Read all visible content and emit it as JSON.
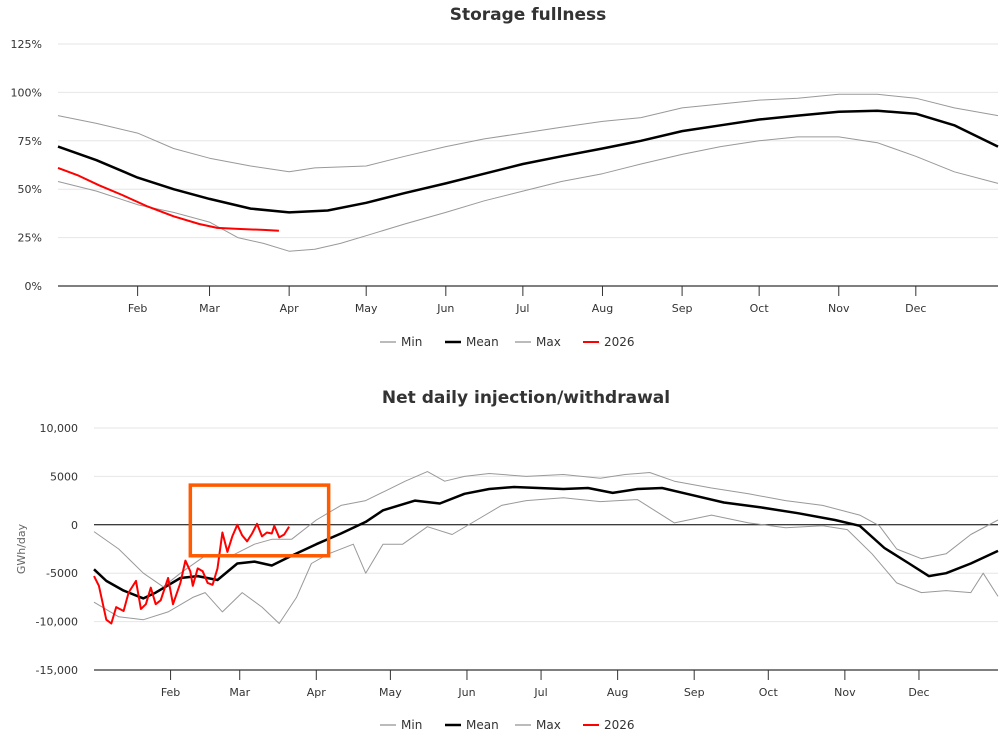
{
  "colors": {
    "min": "#999999",
    "mean": "#000000",
    "max": "#999999",
    "y2026": "#ff0000",
    "highlight": "#ff5a00"
  },
  "chart_data": [
    {
      "type": "line",
      "title": "Storage fullness",
      "xlabel": "",
      "ylabel": "",
      "x_unit": "day of year",
      "xlim": [
        0,
        366
      ],
      "ylim": [
        0,
        125
      ],
      "y_ticks": [
        "0%",
        "25%",
        "50%",
        "75%",
        "100%",
        "125%"
      ],
      "y_tick_values": [
        0,
        25,
        50,
        75,
        100,
        125
      ],
      "x_ticks": [
        "Feb",
        "Mar",
        "Apr",
        "May",
        "Jun",
        "Jul",
        "Aug",
        "Sep",
        "Oct",
        "Nov",
        "Dec"
      ],
      "x_tick_days": [
        31,
        59,
        90,
        120,
        151,
        181,
        212,
        243,
        273,
        304,
        334
      ],
      "legend": [
        "Min",
        "Mean",
        "Max",
        "2026"
      ],
      "legend_position": "bottom",
      "series": [
        {
          "name": "Min",
          "x": [
            0,
            15,
            31,
            45,
            59,
            70,
            80,
            90,
            100,
            110,
            120,
            135,
            151,
            166,
            181,
            196,
            212,
            227,
            243,
            258,
            273,
            288,
            304,
            319,
            334,
            349,
            366
          ],
          "values": [
            54,
            49,
            42,
            38,
            33,
            25,
            22,
            18,
            19,
            22,
            26,
            32,
            38,
            44,
            49,
            54,
            58,
            63,
            68,
            72,
            75,
            77,
            77,
            74,
            67,
            59,
            53
          ]
        },
        {
          "name": "Mean",
          "x": [
            0,
            15,
            31,
            45,
            59,
            75,
            90,
            105,
            120,
            135,
            151,
            166,
            181,
            196,
            212,
            227,
            243,
            258,
            273,
            288,
            304,
            319,
            334,
            349,
            366
          ],
          "values": [
            72,
            65,
            56,
            50,
            45,
            40,
            38,
            39,
            43,
            48,
            53,
            58,
            63,
            67,
            71,
            75,
            80,
            83,
            86,
            88,
            90,
            90.5,
            89,
            83,
            72
          ]
        },
        {
          "name": "Max",
          "x": [
            0,
            15,
            31,
            45,
            59,
            75,
            90,
            100,
            120,
            135,
            151,
            166,
            181,
            196,
            212,
            227,
            243,
            258,
            273,
            288,
            304,
            319,
            334,
            349,
            366
          ],
          "values": [
            88,
            84,
            79,
            71,
            66,
            62,
            59,
            61,
            62,
            67,
            72,
            76,
            79,
            82,
            85,
            87,
            92,
            94,
            96,
            97,
            99,
            99,
            97,
            92,
            88
          ]
        },
        {
          "name": "2026",
          "x": [
            0,
            8,
            16,
            25,
            35,
            45,
            55,
            62,
            70,
            80,
            86
          ],
          "values": [
            61,
            57,
            52,
            47,
            41,
            36,
            32,
            30,
            29.5,
            29,
            28.5
          ]
        }
      ]
    },
    {
      "type": "line",
      "title": "Net daily injection/withdrawal",
      "xlabel": "",
      "ylabel": "GWh/day",
      "x_unit": "day of year",
      "xlim": [
        0,
        366
      ],
      "ylim": [
        -15000,
        10000
      ],
      "y_ticks": [
        "-15,000",
        "-10,000",
        "-5000",
        "0",
        "5000",
        "10,000"
      ],
      "y_tick_values": [
        -15000,
        -10000,
        -5000,
        0,
        5000,
        10000
      ],
      "x_ticks": [
        "Feb",
        "Mar",
        "Apr",
        "May",
        "Jun",
        "Jul",
        "Aug",
        "Sep",
        "Oct",
        "Nov",
        "Dec"
      ],
      "x_tick_days": [
        31,
        59,
        90,
        120,
        151,
        181,
        212,
        243,
        273,
        304,
        334
      ],
      "legend": [
        "Min",
        "Mean",
        "Max",
        "2026"
      ],
      "legend_position": "bottom",
      "annotation": {
        "type": "highlight-box",
        "x_days": [
          39,
          95
        ],
        "y_values": [
          -3200,
          4100
        ]
      },
      "series": [
        {
          "name": "Min",
          "x": [
            0,
            10,
            20,
            30,
            40,
            45,
            52,
            60,
            68,
            75,
            82,
            88,
            95,
            105,
            110,
            117,
            125,
            135,
            145,
            155,
            165,
            175,
            190,
            205,
            220,
            235,
            250,
            265,
            280,
            295,
            305,
            315,
            325,
            335,
            345,
            355,
            360,
            366
          ],
          "values": [
            -8000,
            -9500,
            -9800,
            -9000,
            -7500,
            -7000,
            -9000,
            -7000,
            -8500,
            -10200,
            -7500,
            -4000,
            -3000,
            -2000,
            -5000,
            -2000,
            -2000,
            -200,
            -1000,
            500,
            2000,
            2500,
            2800,
            2400,
            2600,
            200,
            1000,
            200,
            -300,
            -100,
            -500,
            -3000,
            -6000,
            -7000,
            -6800,
            -7000,
            -5000,
            -7400
          ]
        },
        {
          "name": "Mean",
          "x": [
            0,
            5,
            12,
            20,
            25,
            35,
            42,
            50,
            58,
            65,
            72,
            80,
            90,
            100,
            110,
            117,
            130,
            140,
            150,
            160,
            170,
            180,
            190,
            200,
            210,
            220,
            230,
            240,
            255,
            270,
            285,
            300,
            310,
            320,
            330,
            338,
            345,
            355,
            366
          ],
          "values": [
            -4600,
            -5800,
            -6800,
            -7600,
            -7000,
            -5500,
            -5300,
            -5700,
            -4000,
            -3800,
            -4200,
            -3200,
            -2000,
            -900,
            300,
            1500,
            2500,
            2200,
            3200,
            3700,
            3900,
            3800,
            3700,
            3800,
            3300,
            3700,
            3800,
            3200,
            2300,
            1800,
            1200,
            500,
            -100,
            -2400,
            -4000,
            -5300,
            -5000,
            -4000,
            -2700
          ]
        },
        {
          "name": "Max",
          "x": [
            0,
            10,
            20,
            28,
            35,
            45,
            55,
            65,
            72,
            80,
            90,
            100,
            110,
            118,
            126,
            135,
            142,
            150,
            160,
            175,
            190,
            205,
            215,
            225,
            235,
            250,
            265,
            280,
            295,
            310,
            318,
            325,
            335,
            345,
            355,
            366
          ],
          "values": [
            -700,
            -2500,
            -5000,
            -6400,
            -5000,
            -3200,
            -3300,
            -2000,
            -1500,
            -1500,
            500,
            2000,
            2500,
            3500,
            4500,
            5500,
            4500,
            5000,
            5300,
            5000,
            5200,
            4800,
            5200,
            5400,
            4500,
            3800,
            3200,
            2500,
            2000,
            1000,
            -100,
            -2500,
            -3500,
            -3000,
            -1000,
            500
          ]
        },
        {
          "name": "2026",
          "x": [
            0,
            2,
            5,
            7,
            9,
            12,
            14,
            17,
            19,
            21,
            23,
            25,
            27,
            30,
            32,
            35,
            37,
            39,
            40,
            42,
            44,
            46,
            48,
            50,
            52,
            54,
            56,
            58,
            60,
            62,
            64,
            66,
            68,
            70,
            72,
            73,
            75,
            77,
            79
          ],
          "values": [
            -5300,
            -6300,
            -9800,
            -10200,
            -8500,
            -8900,
            -7000,
            -5800,
            -8700,
            -8200,
            -6500,
            -8200,
            -7800,
            -5500,
            -8200,
            -6000,
            -3700,
            -4800,
            -6300,
            -4500,
            -4800,
            -6000,
            -6200,
            -4500,
            -800,
            -2800,
            -1200,
            0,
            -1100,
            -1700,
            -900,
            100,
            -1200,
            -800,
            -900,
            -100,
            -1300,
            -1000,
            -200
          ]
        }
      ]
    }
  ]
}
